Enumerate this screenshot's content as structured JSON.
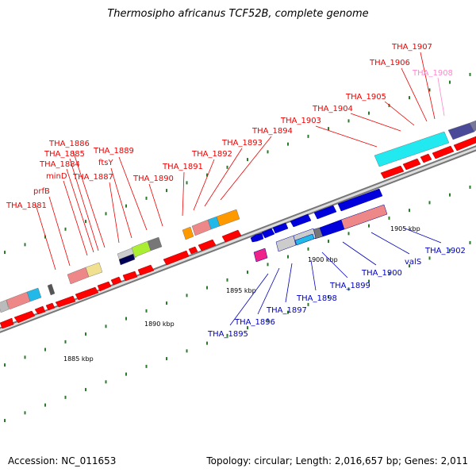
{
  "title": "Thermosipho africanus TCF52B, complete genome",
  "footer": {
    "accession": "Accession: NC_011653",
    "summary": "Topology: circular; Length: 2,016,657 bp; Genes: 2,011"
  },
  "scale_labels": [
    "1885 kbp",
    "1890 kbp",
    "1895 kbp",
    "1900 kbp",
    "1905 kbp"
  ],
  "colors": {
    "forward": "#ff0000",
    "reverse": "#0000dd",
    "pseudo": "#ff88cc",
    "backbone": "#aaaaaa"
  },
  "upper_labels": [
    {
      "text": "THA_1881"
    },
    {
      "text": "prfB"
    },
    {
      "text": "minD"
    },
    {
      "text": "THA_1884"
    },
    {
      "text": "THA_1885"
    },
    {
      "text": "THA_1886"
    },
    {
      "text": "THA_1887"
    },
    {
      "text": "ftsY"
    },
    {
      "text": "THA_1889"
    },
    {
      "text": "THA_1890"
    },
    {
      "text": "THA_1891"
    },
    {
      "text": "THA_1892"
    },
    {
      "text": "THA_1893"
    },
    {
      "text": "THA_1894"
    },
    {
      "text": "THA_1903"
    },
    {
      "text": "THA_1904"
    },
    {
      "text": "THA_1905"
    },
    {
      "text": "THA_1906"
    },
    {
      "text": "THA_1907"
    },
    {
      "text": "THA_1908"
    }
  ],
  "lower_labels": [
    {
      "text": "THA_1895"
    },
    {
      "text": "THA_1896"
    },
    {
      "text": "THA_1897"
    },
    {
      "text": "THA_1898"
    },
    {
      "text": "THA_1899"
    },
    {
      "text": "THA_1900"
    },
    {
      "text": "valS"
    },
    {
      "text": "THA_1902"
    }
  ]
}
